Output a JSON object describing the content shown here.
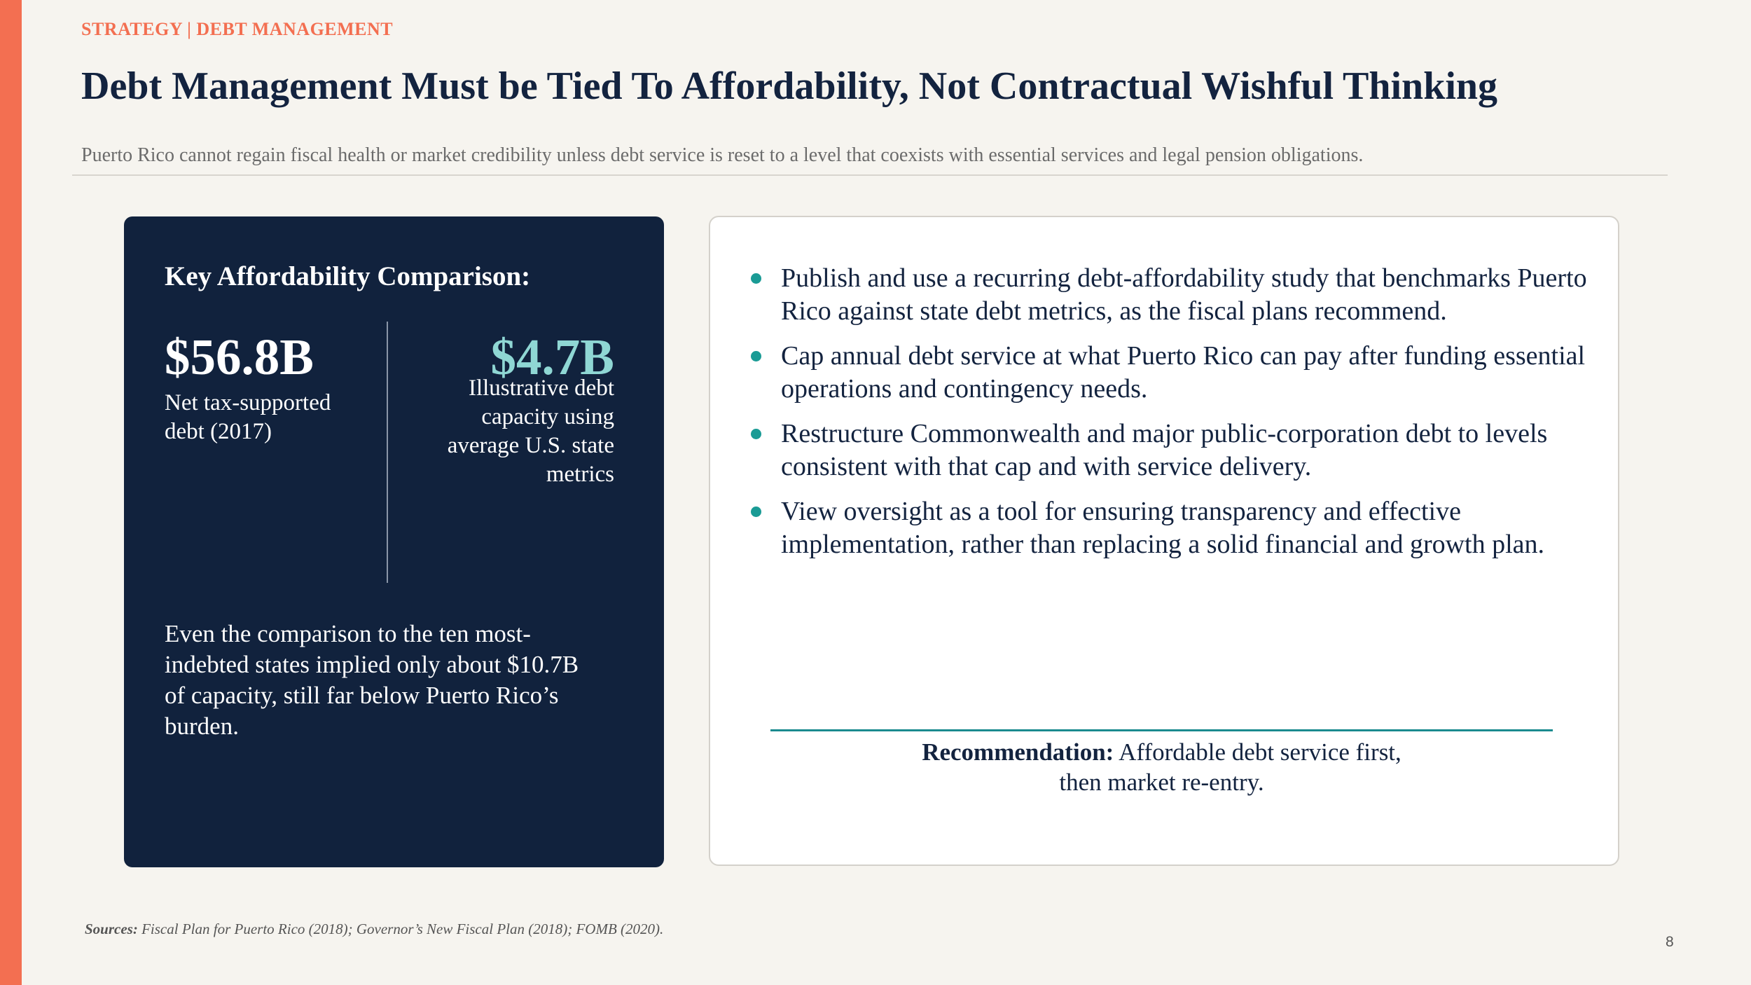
{
  "kicker": "STRATEGY | DEBT MANAGEMENT",
  "title": "Debt Management Must be Tied To Affordability, Not Contractual Wishful Thinking",
  "subtitle": "Puerto Rico cannot regain fiscal health or market credibility unless debt service is reset to a level that coexists with essential services and legal pension obligations.",
  "colors": {
    "accent": "#F36F51",
    "navy": "#11223D",
    "teal": "#1A9B95",
    "teal_light": "#8FD7D4",
    "background": "#F6F4EF"
  },
  "comparison": {
    "heading": "Key Affordability Comparison:",
    "left_value": "$56.8B",
    "left_label": "Net tax-supported debt (2017)",
    "right_value": "$4.7B",
    "right_label": "Illustrative debt capacity using average U.S. state metrics",
    "note": "Even the comparison to the ten most-indebted states implied only about $10.7B of capacity, still far below Puerto Rico’s burden."
  },
  "bullets": [
    "Publish and use a recurring debt-affordability study that benchmarks Puerto Rico against state debt metrics, as the fiscal plans recommend.",
    "Cap annual debt service at what Puerto Rico can pay after funding essential operations and contingency needs.",
    "Restructure Commonwealth and major public-corporation debt to levels consistent with that cap and with service delivery.",
    "View oversight as a tool for ensuring transparency and effective implementation, rather than replacing a solid financial and growth plan."
  ],
  "recommendation": {
    "label": "Recommendation:",
    "text_line1": "Affordable debt service first,",
    "text_line2": "then market re-entry."
  },
  "sources": {
    "label": "Sources:",
    "text": "Fiscal Plan for Puerto Rico (2018); Governor’s New Fiscal Plan (2018); FOMB (2020)."
  },
  "page_number": "8"
}
